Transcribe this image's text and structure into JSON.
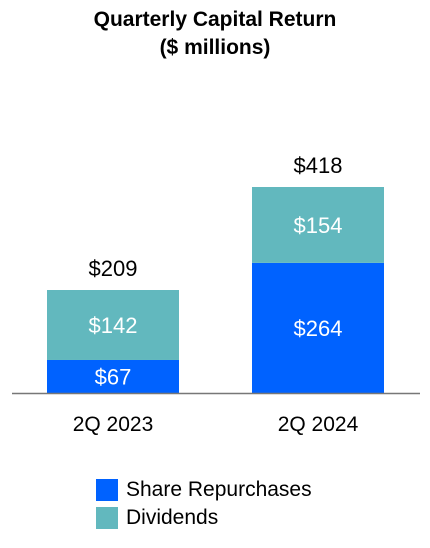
{
  "chart_data": {
    "type": "bar",
    "stacked": true,
    "title": "Quarterly Capital Return",
    "subtitle": "($ millions)",
    "categories": [
      "2Q 2023",
      "2Q 2024"
    ],
    "series": [
      {
        "name": "Share Repurchases",
        "values": [
          67,
          264
        ],
        "labels": [
          "$67",
          "$264"
        ],
        "color": "#0062FF"
      },
      {
        "name": "Dividends",
        "values": [
          142,
          154
        ],
        "labels": [
          "$142",
          "$154"
        ],
        "color": "#62B8BE"
      }
    ],
    "totals": [
      209,
      418
    ],
    "total_labels": [
      "$209",
      "$418"
    ],
    "ylim": [
      0,
      418
    ],
    "grid": false,
    "legend_position": "bottom"
  }
}
